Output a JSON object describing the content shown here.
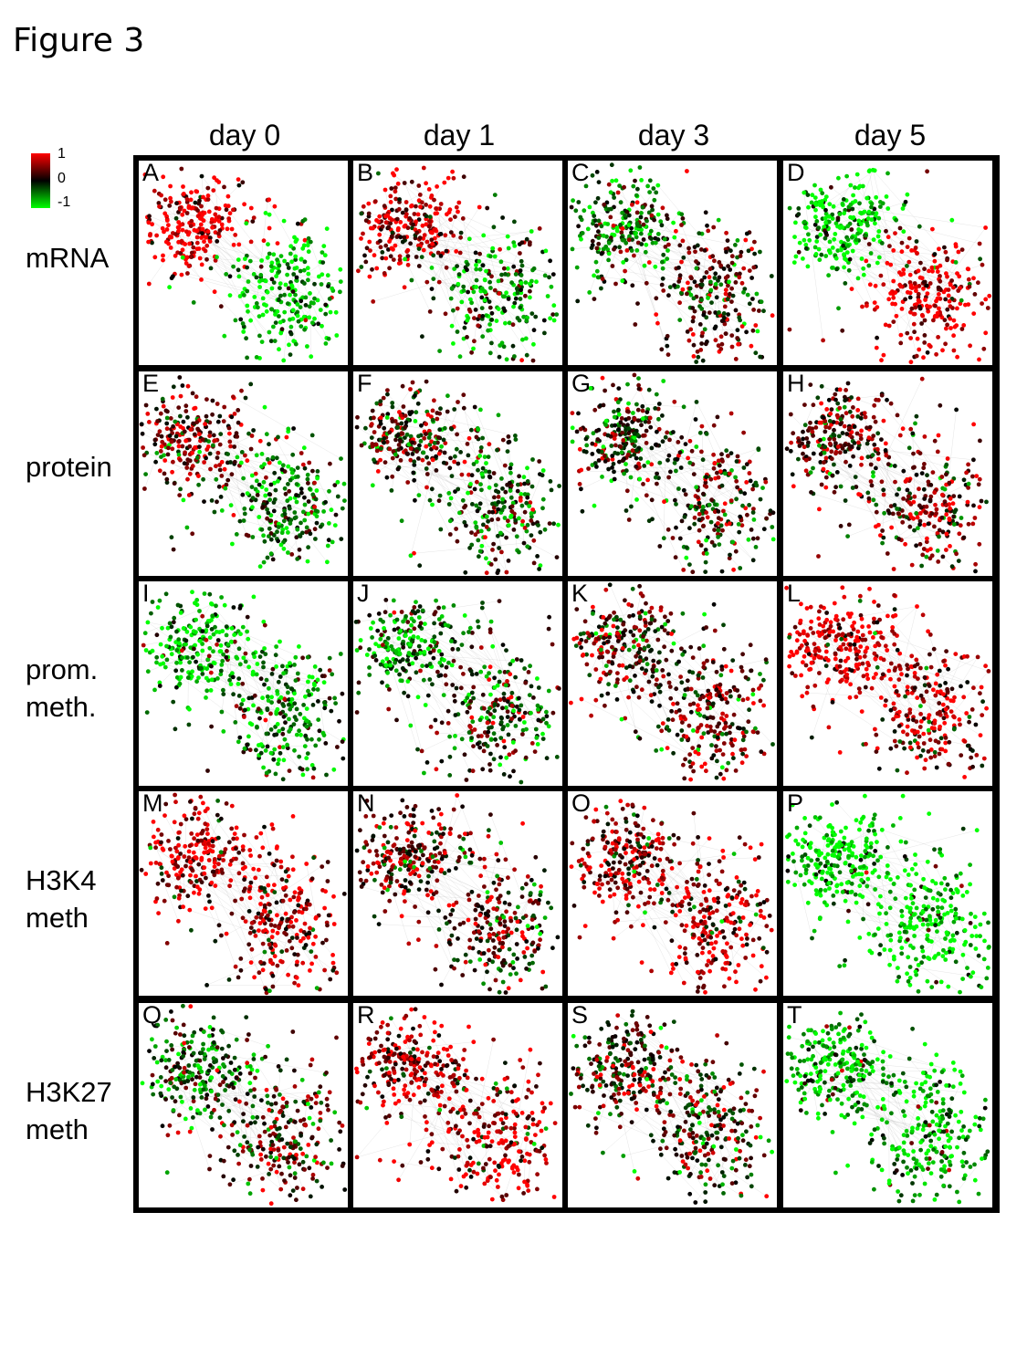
{
  "figure_title": "Figure 3",
  "colors": {
    "high": "#ff0000",
    "mid": "#000000",
    "low": "#00ff00",
    "edge": "#bdbdbd"
  },
  "legend": {
    "ticks": [
      "1",
      "0",
      "-1"
    ]
  },
  "columns": [
    "day 0",
    "day 1",
    "day 3",
    "day 5"
  ],
  "rows": [
    {
      "label": "mRNA"
    },
    {
      "label": "protein"
    },
    {
      "label": "prom.\nmeth."
    },
    {
      "label": "H3K4\nmeth"
    },
    {
      "label": "H3K27\nmeth"
    }
  ],
  "panels": [
    "A",
    "B",
    "C",
    "D",
    "E",
    "F",
    "G",
    "H",
    "I",
    "J",
    "K",
    "L",
    "M",
    "N",
    "O",
    "P",
    "Q",
    "R",
    "S",
    "T"
  ],
  "chart_data": {
    "type": "scatter",
    "description_units": "network node color = relative value (-1 green, 0 black, 1 red)",
    "colorbar_range": [
      -1,
      1
    ],
    "clusters": [
      "upper-left module",
      "lower-right module"
    ],
    "panel_values": {
      "A": {
        "cluster1": 0.9,
        "cluster2": -0.85
      },
      "B": {
        "cluster1": 0.7,
        "cluster2": -0.4
      },
      "C": {
        "cluster1": -0.3,
        "cluster2": 0.2
      },
      "D": {
        "cluster1": -0.85,
        "cluster2": 0.85
      },
      "E": {
        "cluster1": 0.4,
        "cluster2": -0.4
      },
      "F": {
        "cluster1": 0.2,
        "cluster2": -0.2
      },
      "G": {
        "cluster1": 0.0,
        "cluster2": 0.1
      },
      "H": {
        "cluster1": 0.3,
        "cluster2": 0.4
      },
      "I": {
        "cluster1": -0.7,
        "cluster2": -0.4
      },
      "J": {
        "cluster1": -0.4,
        "cluster2": -0.1
      },
      "K": {
        "cluster1": 0.2,
        "cluster2": 0.3
      },
      "L": {
        "cluster1": 0.85,
        "cluster2": 0.6
      },
      "M": {
        "cluster1": 0.85,
        "cluster2": 0.6
      },
      "N": {
        "cluster1": 0.4,
        "cluster2": 0.2
      },
      "O": {
        "cluster1": 0.5,
        "cluster2": 0.7
      },
      "P": {
        "cluster1": -0.95,
        "cluster2": -0.9
      },
      "Q": {
        "cluster1": -0.3,
        "cluster2": 0.2
      },
      "R": {
        "cluster1": 0.6,
        "cluster2": 0.7
      },
      "S": {
        "cluster1": 0.2,
        "cluster2": 0.1
      },
      "T": {
        "cluster1": -0.7,
        "cluster2": -0.7
      }
    }
  }
}
